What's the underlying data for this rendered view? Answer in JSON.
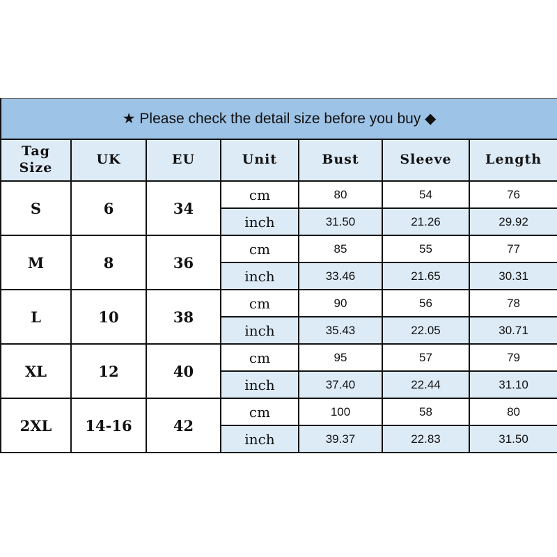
{
  "banner": "★ Please check the detail size before you buy ◆",
  "headers": [
    "Tag\nSize",
    "UK",
    "EU",
    "Unit",
    "Bust",
    "Sleeve",
    "Length"
  ],
  "rows": [
    {
      "tag": "S",
      "uk": "6",
      "eu": "34",
      "cm": [
        "80",
        "54",
        "76"
      ],
      "inch": [
        "31.50",
        "21.26",
        "29.92"
      ]
    },
    {
      "tag": "M",
      "uk": "8",
      "eu": "36",
      "cm": [
        "85",
        "55",
        "77"
      ],
      "inch": [
        "33.46",
        "21.65",
        "30.31"
      ]
    },
    {
      "tag": "L",
      "uk": "10",
      "eu": "38",
      "cm": [
        "90",
        "56",
        "78"
      ],
      "inch": [
        "35.43",
        "22.05",
        "30.71"
      ]
    },
    {
      "tag": "XL",
      "uk": "12",
      "eu": "40",
      "cm": [
        "95",
        "57",
        "79"
      ],
      "inch": [
        "37.40",
        "22.44",
        "31.10"
      ]
    },
    {
      "tag": "2XL",
      "uk": "14-16",
      "eu": "42",
      "cm": [
        "100",
        "58",
        "80"
      ],
      "inch": [
        "39.37",
        "22.83",
        "31.50"
      ]
    }
  ],
  "units": {
    "cm": "cm",
    "inch": "inch"
  },
  "colors": {
    "banner": "#9dc3e6",
    "light": "#ddebf7"
  }
}
